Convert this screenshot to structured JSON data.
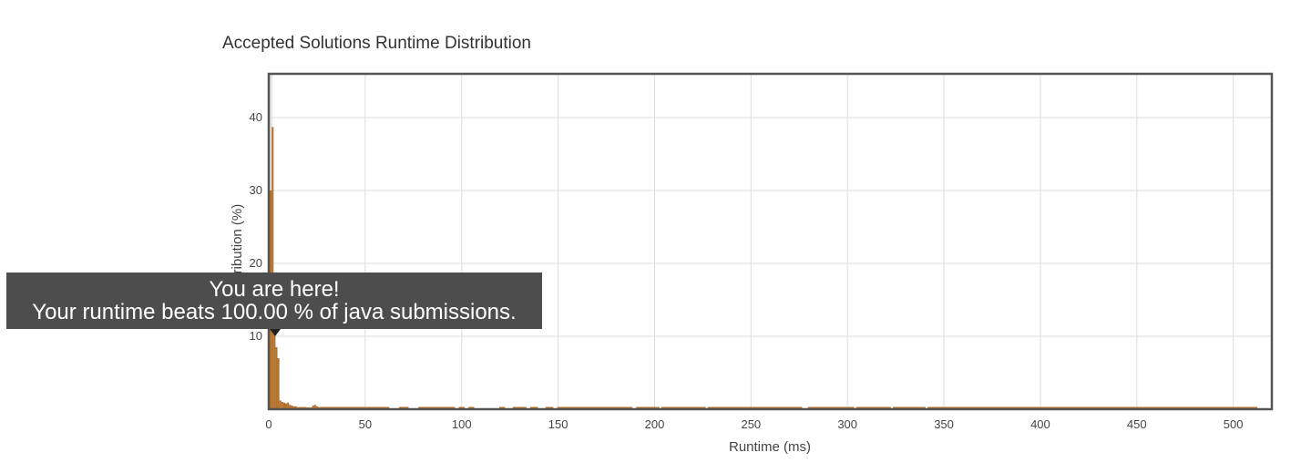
{
  "chart_data": {
    "type": "bar",
    "title": "Accepted Solutions Runtime Distribution",
    "xlabel": "Runtime (ms)",
    "ylabel": "Distribution (%)",
    "xlim": [
      0,
      520
    ],
    "ylim": [
      0,
      46
    ],
    "x_ticks": [
      0,
      50,
      100,
      150,
      200,
      250,
      300,
      350,
      400,
      450,
      500
    ],
    "y_ticks": [
      10,
      20,
      30,
      40
    ],
    "grid": true,
    "bar_color": "#b5712a",
    "highlight_band": [
      0,
      2
    ],
    "bars": [
      {
        "x": 1,
        "y": 30
      },
      {
        "x": 2,
        "y": 38.7
      },
      {
        "x": 3,
        "y": 18.5
      },
      {
        "x": 4,
        "y": 8.5
      },
      {
        "x": 5,
        "y": 7
      },
      {
        "x": 6,
        "y": 1.2
      },
      {
        "x": 7,
        "y": 1
      },
      {
        "x": 8,
        "y": 0.9
      },
      {
        "x": 9,
        "y": 0.8
      },
      {
        "x": 10,
        "y": 0.9
      },
      {
        "x": 11,
        "y": 0.6
      },
      {
        "x": 12,
        "y": 0.5
      },
      {
        "x": 13,
        "y": 0.4
      },
      {
        "x": 14,
        "y": 0.4
      },
      {
        "x": 15,
        "y": 0.3
      },
      {
        "x": 16,
        "y": 0.3
      },
      {
        "x": 17,
        "y": 0.3
      },
      {
        "x": 18,
        "y": 0.3
      },
      {
        "x": 19,
        "y": 0.3
      },
      {
        "x": 20,
        "y": 0.25
      },
      {
        "x": 21,
        "y": 0.25
      },
      {
        "x": 22,
        "y": 0.25
      },
      {
        "x": 23,
        "y": 0.5
      },
      {
        "x": 24,
        "y": 0.6
      },
      {
        "x": 25,
        "y": 0.4
      },
      {
        "x": 26,
        "y": 0.3
      }
    ],
    "baseline_ranges": [
      [
        27,
        62
      ],
      [
        68,
        72
      ],
      [
        78,
        96
      ],
      [
        99,
        101
      ],
      [
        104,
        106
      ],
      [
        120,
        122
      ],
      [
        127,
        133
      ],
      [
        136,
        139
      ],
      [
        144,
        147
      ],
      [
        150,
        188
      ],
      [
        191,
        202
      ],
      [
        204,
        226
      ],
      [
        228,
        276
      ],
      [
        280,
        303
      ],
      [
        305,
        322
      ],
      [
        324,
        340
      ],
      [
        342,
        512
      ]
    ],
    "baseline_value": 0.25
  },
  "tooltip": {
    "line1": "You are here!",
    "line2": "Your runtime beats 100.00 % of java submissions.",
    "x": 2
  }
}
